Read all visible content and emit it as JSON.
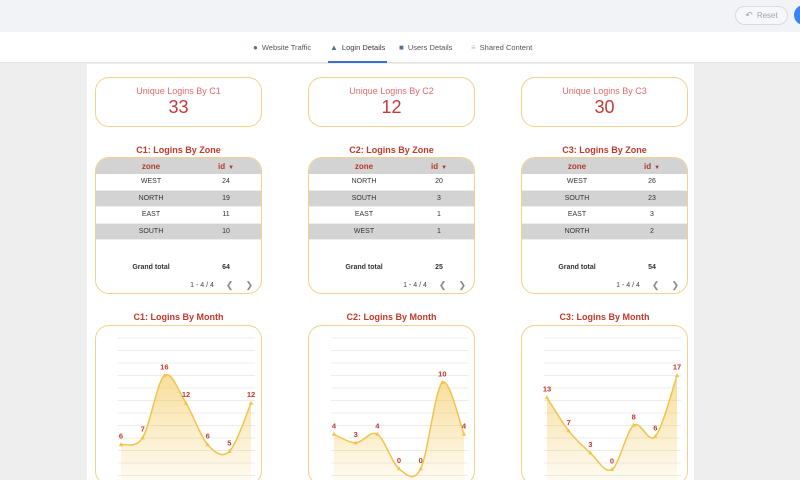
{
  "toolbar": {
    "reset_label": "Reset",
    "reset_icon": "undo-arrow"
  },
  "tabs": [
    {
      "label": "Website Traffic",
      "icon": "globe-icon"
    },
    {
      "label": "Login Details",
      "icon": "drop-icon",
      "active": true
    },
    {
      "label": "Users Details",
      "icon": "person-icon"
    },
    {
      "label": "Shared Content",
      "icon": "bars-icon"
    }
  ],
  "kpis": [
    {
      "label": "Unique Logins By C1",
      "value": "33"
    },
    {
      "label": "Unique Logins By C2",
      "value": "12"
    },
    {
      "label": "Unique Logins By C3",
      "value": "30"
    }
  ],
  "tables": [
    {
      "title": "C1: Logins By Zone",
      "col_zone": "zone",
      "col_id": "id",
      "rows": [
        {
          "zone": "WEST",
          "id": "24"
        },
        {
          "zone": "NORTH",
          "id": "19"
        },
        {
          "zone": "EAST",
          "id": "11"
        },
        {
          "zone": "SOUTH",
          "id": "10"
        }
      ],
      "grand_total_label": "Grand total",
      "grand_total": "64",
      "pager": "1 - 4 / 4"
    },
    {
      "title": "C2: Logins By Zone",
      "col_zone": "zone",
      "col_id": "id",
      "rows": [
        {
          "zone": "NORTH",
          "id": "20"
        },
        {
          "zone": "SOUTH",
          "id": "3"
        },
        {
          "zone": "EAST",
          "id": "1"
        },
        {
          "zone": "WEST",
          "id": "1"
        }
      ],
      "grand_total_label": "Grand total",
      "grand_total": "25",
      "pager": "1 - 4 / 4"
    },
    {
      "title": "C3: Logins By Zone",
      "col_zone": "zone",
      "col_id": "id",
      "rows": [
        {
          "zone": "WEST",
          "id": "26"
        },
        {
          "zone": "SOUTH",
          "id": "23"
        },
        {
          "zone": "EAST",
          "id": "3"
        },
        {
          "zone": "NORTH",
          "id": "2"
        }
      ],
      "grand_total_label": "Grand total",
      "grand_total": "54",
      "pager": "1 - 4 / 4"
    }
  ],
  "charts": [
    {
      "title": "C1: Logins By Month"
    },
    {
      "title": "C2: Logins By Month"
    },
    {
      "title": "C3: Logins By Month"
    }
  ],
  "chart_data": [
    {
      "type": "area",
      "title": "C1: Logins By Month",
      "values": [
        6,
        7,
        16,
        12,
        6,
        5,
        12
      ],
      "ylim": [
        0,
        20
      ],
      "grid": true,
      "line_color": "#f2c44b",
      "label_color": "#c0392b"
    },
    {
      "type": "area",
      "title": "C2: Logins By Month",
      "values": [
        4,
        3,
        4,
        0,
        0,
        10,
        4
      ],
      "ylim": [
        -2,
        14
      ],
      "grid": true,
      "line_color": "#f2c44b",
      "label_color": "#c0392b"
    },
    {
      "type": "area",
      "title": "C3: Logins By Month",
      "values": [
        13,
        7,
        3,
        0,
        8,
        6,
        17
      ],
      "ylim": [
        -3,
        22
      ],
      "grid": true,
      "line_color": "#f2c44b",
      "label_color": "#c0392b"
    }
  ]
}
